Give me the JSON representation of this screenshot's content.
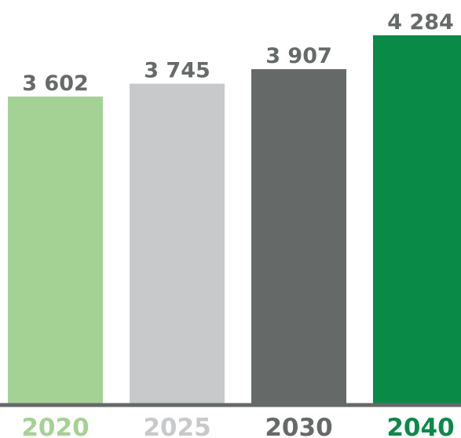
{
  "chart_data": {
    "type": "bar",
    "title": "",
    "xlabel": "",
    "ylabel": "",
    "categories": [
      "2020",
      "2025",
      "2030",
      "2040"
    ],
    "values": [
      3602,
      3745,
      3907,
      4284
    ],
    "value_labels": [
      "3 602",
      "3 745",
      "3 907",
      "4 284"
    ],
    "bar_colors": [
      "#a4d294",
      "#c8c9cb",
      "#656968",
      "#0a8a47"
    ],
    "category_label_colors": [
      "#a4d294",
      "#c8c9cb",
      "#656968",
      "#0a8a47"
    ],
    "baseline_color": "#656968",
    "value_label_color": "#666a69",
    "grid": false,
    "legend": "none"
  }
}
